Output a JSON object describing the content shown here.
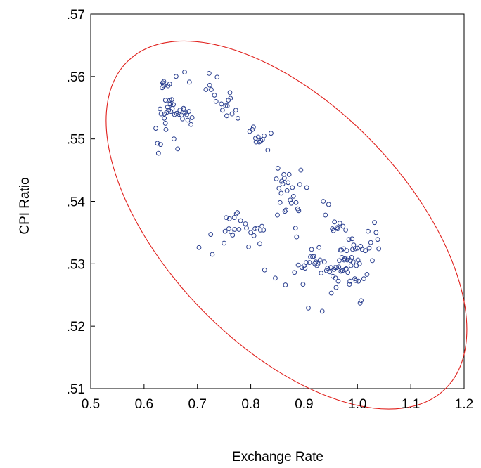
{
  "chart_data": {
    "type": "scatter",
    "xlabel": "Exchange Rate",
    "ylabel": "CPI Ratio",
    "xlim": [
      0.5,
      1.2
    ],
    "ylim": [
      0.51,
      0.57
    ],
    "xticks": [
      "0.5",
      "0.6",
      "0.7",
      "0.8",
      "0.9",
      "1.0",
      "1.1",
      "1.2"
    ],
    "yticks": [
      ".51",
      ".52",
      ".53",
      ".54",
      ".55",
      ".56",
      ".57"
    ],
    "grid": false,
    "legend": "none",
    "marker_color": "#2a3f8f",
    "ellipse_color": "#e0201c",
    "ellipse": {
      "center": [
        0.867,
        0.5362
      ],
      "semi_major_axis_ends": [
        [
          0.57,
          0.5625
        ],
        [
          1.164,
          0.5099
        ]
      ],
      "semi_minor_axis_ends": [
        [
          0.8235,
          0.5174
        ],
        [
          0.9105,
          0.555
        ]
      ]
    },
    "points": [
      [
        0.622,
        0.5517
      ],
      [
        0.625,
        0.5493
      ],
      [
        0.627,
        0.5477
      ],
      [
        0.63,
        0.5548
      ],
      [
        0.631,
        0.5491
      ],
      [
        0.632,
        0.554
      ],
      [
        0.634,
        0.5582
      ],
      [
        0.635,
        0.559
      ],
      [
        0.636,
        0.5588
      ],
      [
        0.637,
        0.5585
      ],
      [
        0.637,
        0.5592
      ],
      [
        0.638,
        0.5533
      ],
      [
        0.638,
        0.554
      ],
      [
        0.64,
        0.5525
      ],
      [
        0.64,
        0.5562
      ],
      [
        0.641,
        0.5515
      ],
      [
        0.642,
        0.5542
      ],
      [
        0.644,
        0.5551
      ],
      [
        0.645,
        0.5585
      ],
      [
        0.646,
        0.5546
      ],
      [
        0.647,
        0.5556
      ],
      [
        0.648,
        0.5562
      ],
      [
        0.648,
        0.5588
      ],
      [
        0.65,
        0.5556
      ],
      [
        0.65,
        0.5544
      ],
      [
        0.652,
        0.5563
      ],
      [
        0.653,
        0.5549
      ],
      [
        0.655,
        0.5555
      ],
      [
        0.656,
        0.55
      ],
      [
        0.657,
        0.5539
      ],
      [
        0.66,
        0.56
      ],
      [
        0.661,
        0.5541
      ],
      [
        0.663,
        0.5484
      ],
      [
        0.666,
        0.5539
      ],
      [
        0.667,
        0.5546
      ],
      [
        0.67,
        0.5538
      ],
      [
        0.672,
        0.5532
      ],
      [
        0.674,
        0.5549
      ],
      [
        0.675,
        0.5547
      ],
      [
        0.676,
        0.5607
      ],
      [
        0.678,
        0.5543
      ],
      [
        0.68,
        0.5539
      ],
      [
        0.682,
        0.553
      ],
      [
        0.684,
        0.5544
      ],
      [
        0.685,
        0.5591
      ],
      [
        0.688,
        0.5523
      ],
      [
        0.69,
        0.5534
      ],
      [
        0.703,
        0.5326
      ],
      [
        0.716,
        0.5579
      ],
      [
        0.722,
        0.5605
      ],
      [
        0.723,
        0.5586
      ],
      [
        0.725,
        0.5347
      ],
      [
        0.726,
        0.5579
      ],
      [
        0.728,
        0.5315
      ],
      [
        0.732,
        0.557
      ],
      [
        0.735,
        0.556
      ],
      [
        0.737,
        0.5599
      ],
      [
        0.745,
        0.5556
      ],
      [
        0.747,
        0.5546
      ],
      [
        0.75,
        0.5333
      ],
      [
        0.752,
        0.5352
      ],
      [
        0.753,
        0.5553
      ],
      [
        0.754,
        0.5374
      ],
      [
        0.755,
        0.5537
      ],
      [
        0.756,
        0.5553
      ],
      [
        0.758,
        0.5562
      ],
      [
        0.759,
        0.5356
      ],
      [
        0.76,
        0.5372
      ],
      [
        0.761,
        0.5574
      ],
      [
        0.762,
        0.5565
      ],
      [
        0.763,
        0.5351
      ],
      [
        0.765,
        0.554
      ],
      [
        0.766,
        0.5346
      ],
      [
        0.769,
        0.5374
      ],
      [
        0.77,
        0.5355
      ],
      [
        0.772,
        0.5546
      ],
      [
        0.773,
        0.538
      ],
      [
        0.775,
        0.5382
      ],
      [
        0.776,
        0.5533
      ],
      [
        0.778,
        0.5355
      ],
      [
        0.781,
        0.5369
      ],
      [
        0.79,
        0.5364
      ],
      [
        0.792,
        0.5357
      ],
      [
        0.796,
        0.5327
      ],
      [
        0.798,
        0.5512
      ],
      [
        0.8,
        0.535
      ],
      [
        0.803,
        0.5515
      ],
      [
        0.805,
        0.5519
      ],
      [
        0.806,
        0.5345
      ],
      [
        0.808,
        0.5356
      ],
      [
        0.809,
        0.5501
      ],
      [
        0.81,
        0.5495
      ],
      [
        0.812,
        0.5357
      ],
      [
        0.814,
        0.5503
      ],
      [
        0.816,
        0.5495
      ],
      [
        0.817,
        0.5332
      ],
      [
        0.818,
        0.5354
      ],
      [
        0.819,
        0.5497
      ],
      [
        0.821,
        0.536
      ],
      [
        0.822,
        0.5499
      ],
      [
        0.824,
        0.5354
      ],
      [
        0.825,
        0.5505
      ],
      [
        0.826,
        0.529
      ],
      [
        0.832,
        0.5482
      ],
      [
        0.838,
        0.5509
      ],
      [
        0.846,
        0.5277
      ],
      [
        0.848,
        0.5436
      ],
      [
        0.85,
        0.5378
      ],
      [
        0.851,
        0.5453
      ],
      [
        0.853,
        0.5421
      ],
      [
        0.855,
        0.5398
      ],
      [
        0.857,
        0.5413
      ],
      [
        0.858,
        0.5432
      ],
      [
        0.86,
        0.5428
      ],
      [
        0.862,
        0.5443
      ],
      [
        0.863,
        0.5437
      ],
      [
        0.864,
        0.5384
      ],
      [
        0.865,
        0.5266
      ],
      [
        0.866,
        0.5386
      ],
      [
        0.868,
        0.5417
      ],
      [
        0.87,
        0.543
      ],
      [
        0.872,
        0.5443
      ],
      [
        0.874,
        0.5402
      ],
      [
        0.876,
        0.5397
      ],
      [
        0.878,
        0.5422
      ],
      [
        0.88,
        0.5408
      ],
      [
        0.882,
        0.5286
      ],
      [
        0.884,
        0.5357
      ],
      [
        0.885,
        0.5398
      ],
      [
        0.886,
        0.5343
      ],
      [
        0.888,
        0.5388
      ],
      [
        0.889,
        0.5298
      ],
      [
        0.89,
        0.5385
      ],
      [
        0.892,
        0.5427
      ],
      [
        0.894,
        0.545
      ],
      [
        0.896,
        0.5294
      ],
      [
        0.898,
        0.5267
      ],
      [
        0.9,
        0.5297
      ],
      [
        0.902,
        0.5293
      ],
      [
        0.904,
        0.5302
      ],
      [
        0.905,
        0.5422
      ],
      [
        0.908,
        0.5229
      ],
      [
        0.91,
        0.5302
      ],
      [
        0.912,
        0.5311
      ],
      [
        0.914,
        0.5323
      ],
      [
        0.916,
        0.5311
      ],
      [
        0.918,
        0.5312
      ],
      [
        0.92,
        0.53
      ],
      [
        0.922,
        0.5303
      ],
      [
        0.924,
        0.5297
      ],
      [
        0.926,
        0.53
      ],
      [
        0.928,
        0.5326
      ],
      [
        0.93,
        0.5306
      ],
      [
        0.932,
        0.5285
      ],
      [
        0.934,
        0.5224
      ],
      [
        0.936,
        0.54
      ],
      [
        0.938,
        0.5303
      ],
      [
        0.94,
        0.5378
      ],
      [
        0.942,
        0.5289
      ],
      [
        0.944,
        0.5293
      ],
      [
        0.946,
        0.5395
      ],
      [
        0.948,
        0.5287
      ],
      [
        0.95,
        0.5294
      ],
      [
        0.951,
        0.5253
      ],
      [
        0.953,
        0.5356
      ],
      [
        0.954,
        0.528
      ],
      [
        0.955,
        0.5353
      ],
      [
        0.956,
        0.5291
      ],
      [
        0.957,
        0.5367
      ],
      [
        0.958,
        0.5294
      ],
      [
        0.959,
        0.5277
      ],
      [
        0.96,
        0.5262
      ],
      [
        0.961,
        0.5294
      ],
      [
        0.962,
        0.5358
      ],
      [
        0.963,
        0.5356
      ],
      [
        0.964,
        0.5272
      ],
      [
        0.965,
        0.5295
      ],
      [
        0.966,
        0.5305
      ],
      [
        0.967,
        0.5365
      ],
      [
        0.968,
        0.5322
      ],
      [
        0.969,
        0.5288
      ],
      [
        0.97,
        0.5322
      ],
      [
        0.971,
        0.531
      ],
      [
        0.972,
        0.5289
      ],
      [
        0.973,
        0.536
      ],
      [
        0.974,
        0.5324
      ],
      [
        0.975,
        0.5306
      ],
      [
        0.976,
        0.5308
      ],
      [
        0.977,
        0.5291
      ],
      [
        0.978,
        0.5354
      ],
      [
        0.979,
        0.5292
      ],
      [
        0.98,
        0.5321
      ],
      [
        0.981,
        0.5306
      ],
      [
        0.982,
        0.5286
      ],
      [
        0.983,
        0.5309
      ],
      [
        0.984,
        0.5339
      ],
      [
        0.985,
        0.5267
      ],
      [
        0.986,
        0.5272
      ],
      [
        0.987,
        0.5305
      ],
      [
        0.988,
        0.5297
      ],
      [
        0.989,
        0.531
      ],
      [
        0.99,
        0.534
      ],
      [
        0.991,
        0.5323
      ],
      [
        0.992,
        0.5303
      ],
      [
        0.993,
        0.533
      ],
      [
        0.995,
        0.5276
      ],
      [
        0.996,
        0.5324
      ],
      [
        0.997,
        0.5273
      ],
      [
        0.998,
        0.5297
      ],
      [
        1.0,
        0.5325
      ],
      [
        1.001,
        0.5306
      ],
      [
        1.002,
        0.5272
      ],
      [
        1.004,
        0.53
      ],
      [
        1.005,
        0.5237
      ],
      [
        1.006,
        0.5328
      ],
      [
        1.007,
        0.5241
      ],
      [
        1.009,
        0.5323
      ],
      [
        1.012,
        0.5276
      ],
      [
        1.015,
        0.5321
      ],
      [
        1.018,
        0.5283
      ],
      [
        1.02,
        0.5352
      ],
      [
        1.022,
        0.5325
      ],
      [
        1.025,
        0.5334
      ],
      [
        1.028,
        0.5305
      ],
      [
        1.032,
        0.5366
      ],
      [
        1.035,
        0.535
      ],
      [
        1.038,
        0.5339
      ],
      [
        1.04,
        0.5324
      ]
    ]
  }
}
